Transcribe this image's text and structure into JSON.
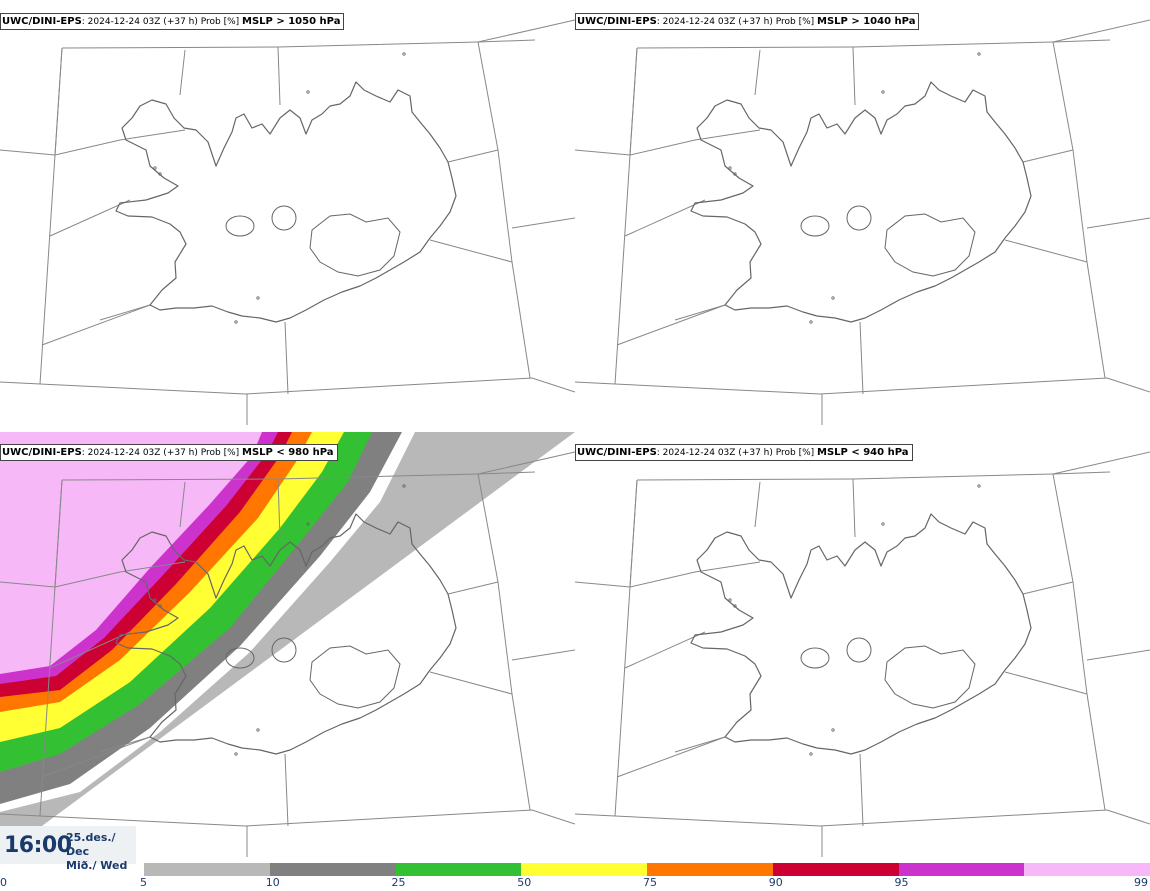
{
  "panels": [
    {
      "model": "UWC/DINI-EPS",
      "run": ": 2024-12-24 03Z (+37 h) Prob [%] ",
      "field": "MSLP > 1050 hPa"
    },
    {
      "model": "UWC/DINI-EPS",
      "run": ": 2024-12-24 03Z (+37 h) Prob [%] ",
      "field": "MSLP > 1040 hPa"
    },
    {
      "model": "UWC/DINI-EPS",
      "run": ": 2024-12-24 03Z (+37 h) Prob [%] ",
      "field": "MSLP < 980 hPa"
    },
    {
      "model": "UWC/DINI-EPS",
      "run": ": 2024-12-24 03Z (+37 h) Prob [%] ",
      "field": "MSLP < 940 hPa"
    }
  ],
  "valid_time": {
    "time": "16:00",
    "date_line1": "25.des./ Dec",
    "date_line2": "Mið./ Wed"
  },
  "colorbar": {
    "ticks": [
      "0",
      "5",
      "10",
      "25",
      "50",
      "75",
      "90",
      "95",
      "99"
    ],
    "colors": [
      "#b8b8b8",
      "#808080",
      "#33c133",
      "#ffff33",
      "#ff7700",
      "#cc0033",
      "#cc33cc",
      "#f7b8f7"
    ]
  }
}
